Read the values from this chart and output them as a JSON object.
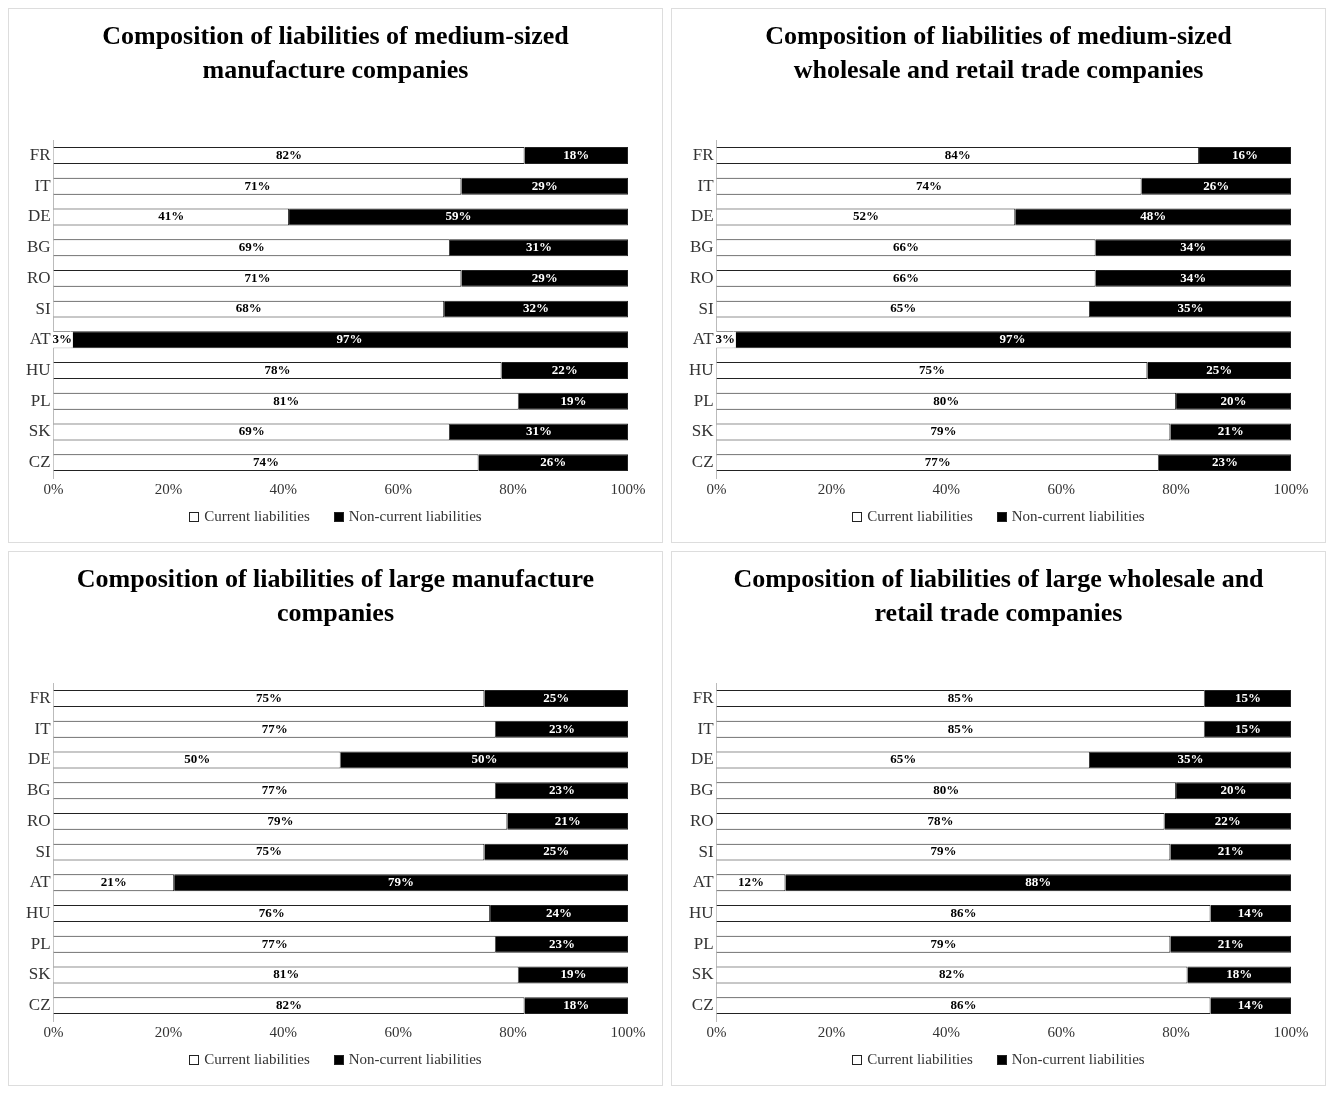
{
  "chart_data": [
    {
      "type": "bar",
      "orientation": "horizontal",
      "stacked": true,
      "title": "Composition of liabilities of medium-sized manufacture companies",
      "categories": [
        "FR",
        "IT",
        "DE",
        "BG",
        "RO",
        "SI",
        "AT",
        "HU",
        "PL",
        "SK",
        "CZ"
      ],
      "xlim": [
        0,
        100
      ],
      "xticks": [
        {
          "value": 0,
          "label": "0%"
        },
        {
          "value": 20,
          "label": "20%"
        },
        {
          "value": 40,
          "label": "40%"
        },
        {
          "value": 60,
          "label": "60%"
        },
        {
          "value": 80,
          "label": "80%"
        },
        {
          "value": 100,
          "label": "100%"
        }
      ],
      "legend": "bottom",
      "series": [
        {
          "name": "Current liabilities",
          "color": "#ffffff",
          "values": [
            82,
            71,
            41,
            69,
            71,
            68,
            3,
            78,
            81,
            69,
            74
          ],
          "value_labels": [
            "82%",
            "71%",
            "41%",
            "69%",
            "71%",
            "68%",
            "3%",
            "78%",
            "81%",
            "69%",
            "74%"
          ]
        },
        {
          "name": "Non-current liabilities",
          "color": "#000000",
          "values": [
            18,
            29,
            59,
            31,
            29,
            32,
            97,
            22,
            19,
            31,
            26
          ],
          "value_labels": [
            "18%",
            "29%",
            "59%",
            "31%",
            "29%",
            "32%",
            "97%",
            "22%",
            "19%",
            "31%",
            "26%"
          ]
        }
      ]
    },
    {
      "type": "bar",
      "orientation": "horizontal",
      "stacked": true,
      "title": "Composition of liabilities of medium-sized wholesale and retail trade companies",
      "categories": [
        "FR",
        "IT",
        "DE",
        "BG",
        "RO",
        "SI",
        "AT",
        "HU",
        "PL",
        "SK",
        "CZ"
      ],
      "xlim": [
        0,
        100
      ],
      "xticks": [
        {
          "value": 0,
          "label": "0%"
        },
        {
          "value": 20,
          "label": "20%"
        },
        {
          "value": 40,
          "label": "40%"
        },
        {
          "value": 60,
          "label": "60%"
        },
        {
          "value": 80,
          "label": "80%"
        },
        {
          "value": 100,
          "label": "100%"
        }
      ],
      "legend": "bottom",
      "series": [
        {
          "name": "Current liabilities",
          "color": "#ffffff",
          "values": [
            84,
            74,
            52,
            66,
            66,
            65,
            3,
            75,
            80,
            79,
            77
          ],
          "value_labels": [
            "84%",
            "74%",
            "52%",
            "66%",
            "66%",
            "65%",
            "3%",
            "75%",
            "80%",
            "79%",
            "77%"
          ]
        },
        {
          "name": "Non-current liabilities",
          "color": "#000000",
          "values": [
            16,
            26,
            48,
            34,
            34,
            35,
            97,
            25,
            20,
            21,
            23
          ],
          "value_labels": [
            "16%",
            "26%",
            "48%",
            "34%",
            "34%",
            "35%",
            "97%",
            "25%",
            "20%",
            "21%",
            "23%"
          ]
        }
      ]
    },
    {
      "type": "bar",
      "orientation": "horizontal",
      "stacked": true,
      "title": "Composition of liabilities of large manufacture companies",
      "categories": [
        "FR",
        "IT",
        "DE",
        "BG",
        "RO",
        "SI",
        "AT",
        "HU",
        "PL",
        "SK",
        "CZ"
      ],
      "xlim": [
        0,
        100
      ],
      "xticks": [
        {
          "value": 0,
          "label": "0%"
        },
        {
          "value": 20,
          "label": "20%"
        },
        {
          "value": 40,
          "label": "40%"
        },
        {
          "value": 60,
          "label": "60%"
        },
        {
          "value": 80,
          "label": "80%"
        },
        {
          "value": 100,
          "label": "100%"
        }
      ],
      "legend": "bottom",
      "series": [
        {
          "name": "Current liabilities",
          "color": "#ffffff",
          "values": [
            75,
            77,
            50,
            77,
            79,
            75,
            21,
            76,
            77,
            81,
            82
          ],
          "value_labels": [
            "75%",
            "77%",
            "50%",
            "77%",
            "79%",
            "75%",
            "21%",
            "76%",
            "77%",
            "81%",
            "82%"
          ]
        },
        {
          "name": "Non-current liabilities",
          "color": "#000000",
          "values": [
            25,
            23,
            50,
            23,
            21,
            25,
            79,
            24,
            23,
            19,
            18
          ],
          "value_labels": [
            "25%",
            "23%",
            "50%",
            "23%",
            "21%",
            "25%",
            "79%",
            "24%",
            "23%",
            "19%",
            "18%"
          ]
        }
      ]
    },
    {
      "type": "bar",
      "orientation": "horizontal",
      "stacked": true,
      "title": "Composition of liabilities of large wholesale and retail trade companies",
      "categories": [
        "FR",
        "IT",
        "DE",
        "BG",
        "RO",
        "SI",
        "AT",
        "HU",
        "PL",
        "SK",
        "CZ"
      ],
      "xlim": [
        0,
        100
      ],
      "xticks": [
        {
          "value": 0,
          "label": "0%"
        },
        {
          "value": 20,
          "label": "20%"
        },
        {
          "value": 40,
          "label": "40%"
        },
        {
          "value": 60,
          "label": "60%"
        },
        {
          "value": 80,
          "label": "80%"
        },
        {
          "value": 100,
          "label": "100%"
        }
      ],
      "legend": "bottom",
      "series": [
        {
          "name": "Current liabilities",
          "color": "#ffffff",
          "values": [
            85,
            85,
            65,
            80,
            78,
            79,
            12,
            86,
            79,
            82,
            86
          ],
          "value_labels": [
            "85%",
            "85%",
            "65%",
            "80%",
            "78%",
            "79%",
            "12%",
            "86%",
            "79%",
            "82%",
            "86%"
          ]
        },
        {
          "name": "Non-current liabilities",
          "color": "#000000",
          "values": [
            15,
            15,
            35,
            20,
            22,
            21,
            88,
            14,
            21,
            18,
            14
          ],
          "value_labels": [
            "15%",
            "15%",
            "35%",
            "20%",
            "22%",
            "21%",
            "88%",
            "14%",
            "21%",
            "18%",
            "14%"
          ]
        }
      ]
    }
  ]
}
